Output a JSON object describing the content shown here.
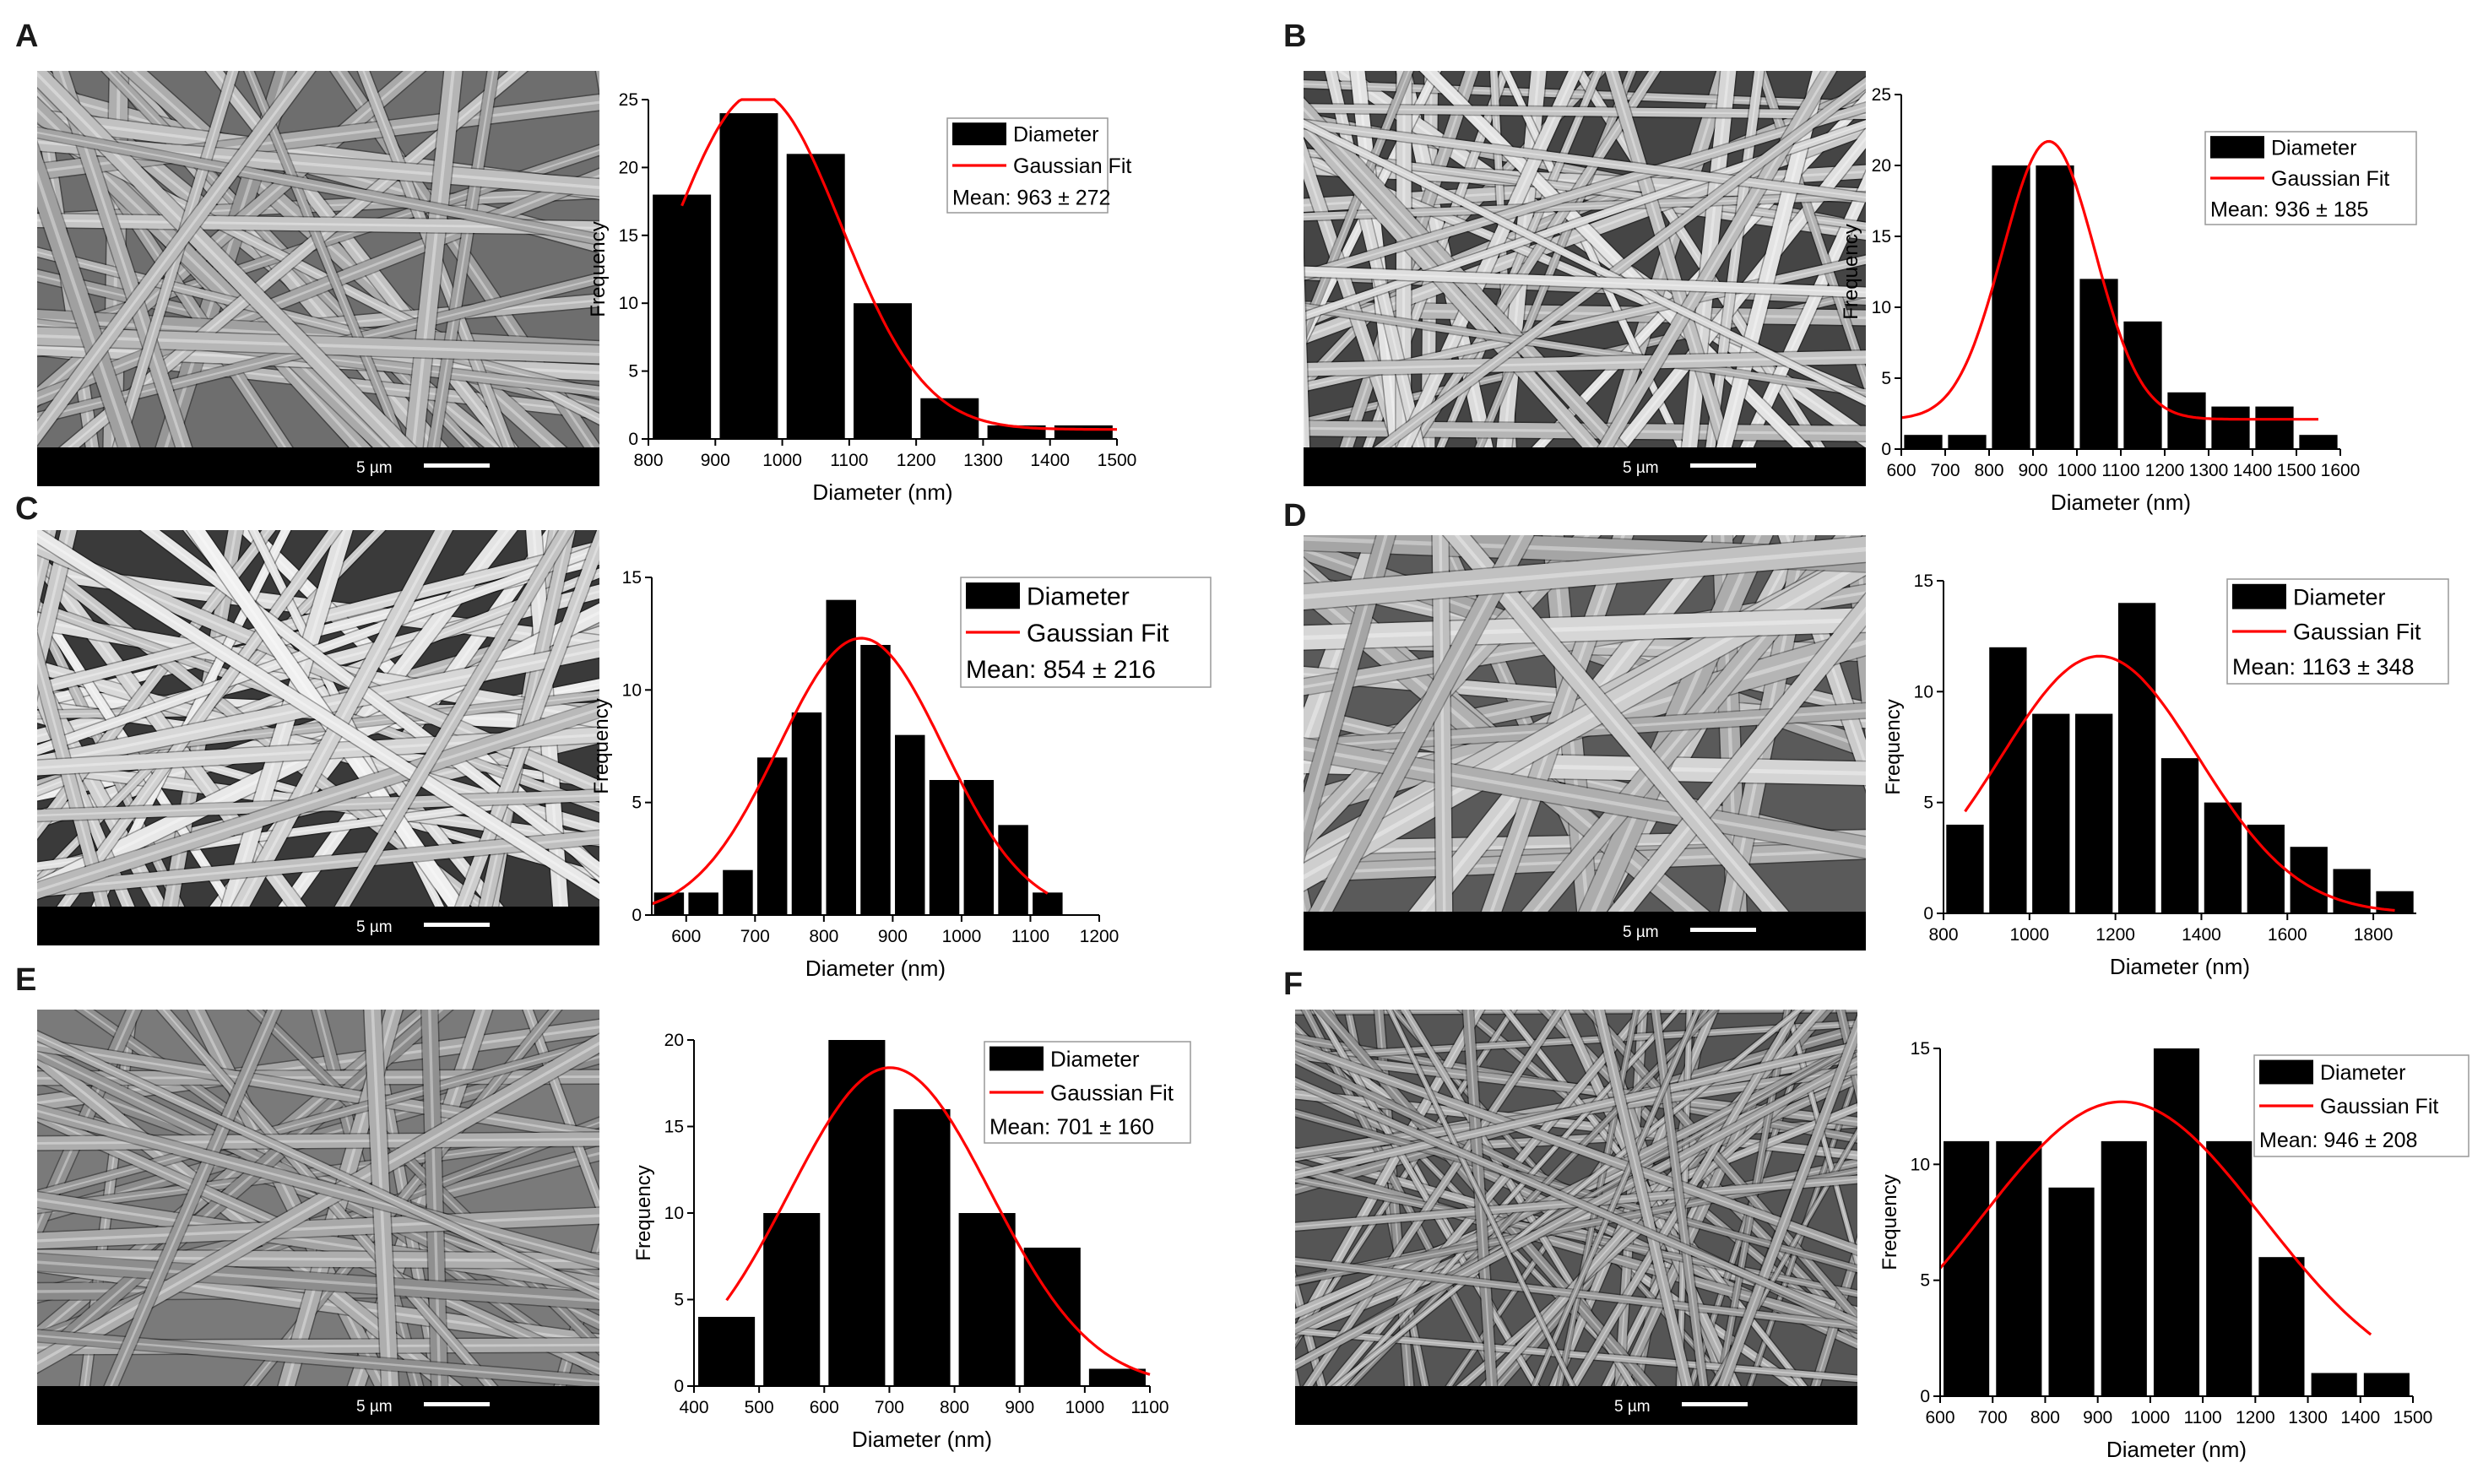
{
  "figure": {
    "scale_bar_label": "5 µm",
    "panels": [
      {
        "letter": "A"
      },
      {
        "letter": "B"
      },
      {
        "letter": "C"
      },
      {
        "letter": "D"
      },
      {
        "letter": "E"
      },
      {
        "letter": "F"
      }
    ]
  },
  "colors": {
    "bar": "#000000",
    "fit": "#ff0000",
    "background": "#ffffff"
  },
  "chart_data": [
    {
      "panel": "A",
      "type": "bar",
      "xlabel": "Diameter (nm)",
      "ylabel": "Frequency",
      "xlim": [
        800,
        1500
      ],
      "ylim": [
        0,
        25
      ],
      "xticks": [
        800,
        900,
        1000,
        1100,
        1200,
        1300,
        1400,
        1500
      ],
      "yticks": [
        0,
        5,
        10,
        15,
        20,
        25
      ],
      "bin_width": 100,
      "bins": [
        850,
        950,
        1050,
        1150,
        1250,
        1350,
        1450
      ],
      "values": [
        18,
        24,
        21,
        10,
        3,
        1,
        1
      ],
      "fit": {
        "name": "Gaussian Fit",
        "mean": 963,
        "sigma": 125,
        "amplitude": 24.8,
        "baseline": 0.7,
        "x_range": [
          850,
          1500
        ]
      },
      "legend": {
        "bar_label": "Diameter",
        "fit_label": "Gaussian Fit",
        "mean_text": "Mean: 963 ± 272",
        "placement": "top-right"
      }
    },
    {
      "panel": "B",
      "type": "bar",
      "xlabel": "Diameter (nm)",
      "ylabel": "Frequency",
      "xlim": [
        600,
        1600
      ],
      "ylim": [
        0,
        25
      ],
      "xticks": [
        600,
        700,
        800,
        900,
        1000,
        1100,
        1200,
        1300,
        1400,
        1500,
        1600
      ],
      "yticks": [
        0,
        5,
        10,
        15,
        20,
        25
      ],
      "bin_width": 100,
      "bins": [
        650,
        750,
        850,
        950,
        1050,
        1150,
        1250,
        1350,
        1450,
        1550
      ],
      "values": [
        1,
        1,
        20,
        20,
        12,
        9,
        4,
        3,
        3,
        1
      ],
      "fit": {
        "name": "Gaussian Fit",
        "mean": 936,
        "sigma": 105,
        "amplitude": 19.6,
        "baseline": 2.1,
        "x_range": [
          600,
          1550
        ]
      },
      "legend": {
        "bar_label": "Diameter",
        "fit_label": "Gaussian Fit",
        "mean_text": "Mean: 936 ± 185",
        "placement": "top-right"
      }
    },
    {
      "panel": "C",
      "type": "bar",
      "xlabel": "Diameter (nm)",
      "ylabel": "Frequency",
      "xlim": [
        550,
        1200
      ],
      "ylim": [
        0,
        15
      ],
      "xticks": [
        600,
        700,
        800,
        900,
        1000,
        1100,
        1200
      ],
      "yticks": [
        0,
        5,
        10,
        15
      ],
      "bin_width": 50,
      "bins": [
        575,
        625,
        675,
        725,
        775,
        825,
        875,
        925,
        975,
        1025,
        1075,
        1125
      ],
      "values": [
        1,
        1,
        2,
        7,
        9,
        14,
        12,
        8,
        6,
        6,
        4,
        1
      ],
      "fit": {
        "name": "Gaussian Fit",
        "mean": 854,
        "sigma": 120,
        "amplitude": 12.3,
        "baseline": 0,
        "x_range": [
          550,
          1125
        ]
      },
      "legend": {
        "bar_label": "Diameter",
        "fit_label": "Gaussian Fit",
        "mean_text": "Mean: 854 ± 216",
        "placement": "top-right"
      }
    },
    {
      "panel": "D",
      "type": "bar",
      "xlabel": "Diameter (nm)",
      "ylabel": "Frequency",
      "xlim": [
        800,
        1900
      ],
      "ylim": [
        0,
        15
      ],
      "xticks": [
        800,
        1000,
        1200,
        1400,
        1600,
        1800
      ],
      "yticks": [
        0,
        5,
        10,
        15
      ],
      "bin_width": 100,
      "bins": [
        850,
        950,
        1050,
        1150,
        1250,
        1350,
        1450,
        1550,
        1650,
        1750,
        1850
      ],
      "values": [
        4,
        12,
        9,
        9,
        14,
        7,
        5,
        4,
        3,
        2,
        1
      ],
      "fit": {
        "name": "Gaussian Fit",
        "mean": 1163,
        "sigma": 230,
        "amplitude": 11.6,
        "baseline": 0,
        "x_range": [
          850,
          1850
        ]
      },
      "legend": {
        "bar_label": "Diameter",
        "fit_label": "Gaussian Fit",
        "mean_text": "Mean: 1163 ± 348",
        "placement": "top-right"
      }
    },
    {
      "panel": "E",
      "type": "bar",
      "xlabel": "Diameter (nm)",
      "ylabel": "Frequency",
      "xlim": [
        400,
        1100
      ],
      "ylim": [
        0,
        20
      ],
      "xticks": [
        400,
        500,
        600,
        700,
        800,
        900,
        1000,
        1100
      ],
      "yticks": [
        0,
        5,
        10,
        15,
        20
      ],
      "bin_width": 100,
      "bins": [
        450,
        550,
        650,
        750,
        850,
        950,
        1050
      ],
      "values": [
        4,
        10,
        20,
        16,
        10,
        8,
        1
      ],
      "fit": {
        "name": "Gaussian Fit",
        "mean": 701,
        "sigma": 155,
        "amplitude": 18.4,
        "baseline": 0,
        "x_range": [
          450,
          1100
        ]
      },
      "legend": {
        "bar_label": "Diameter",
        "fit_label": "Gaussian Fit",
        "mean_text": "Mean: 701 ± 160",
        "placement": "top-right"
      }
    },
    {
      "panel": "F",
      "type": "bar",
      "xlabel": "Diameter (nm)",
      "ylabel": "Frequency",
      "xlim": [
        600,
        1500
      ],
      "ylim": [
        0,
        15
      ],
      "xticks": [
        600,
        700,
        800,
        900,
        1000,
        1100,
        1200,
        1300,
        1400,
        1500
      ],
      "yticks": [
        0,
        5,
        10,
        15
      ],
      "bin_width": 100,
      "bins": [
        650,
        750,
        850,
        950,
        1050,
        1150,
        1250,
        1350,
        1450
      ],
      "values": [
        11,
        11,
        9,
        11,
        15,
        11,
        6,
        1,
        1
      ],
      "fit": {
        "name": "Gaussian Fit",
        "mean": 946,
        "sigma": 268,
        "amplitude": 12.7,
        "baseline": 0,
        "x_range": [
          600,
          1420
        ]
      },
      "legend": {
        "bar_label": "Diameter",
        "fit_label": "Gaussian Fit",
        "mean_text": "Mean: 946 ± 208",
        "placement": "top-right"
      }
    }
  ]
}
